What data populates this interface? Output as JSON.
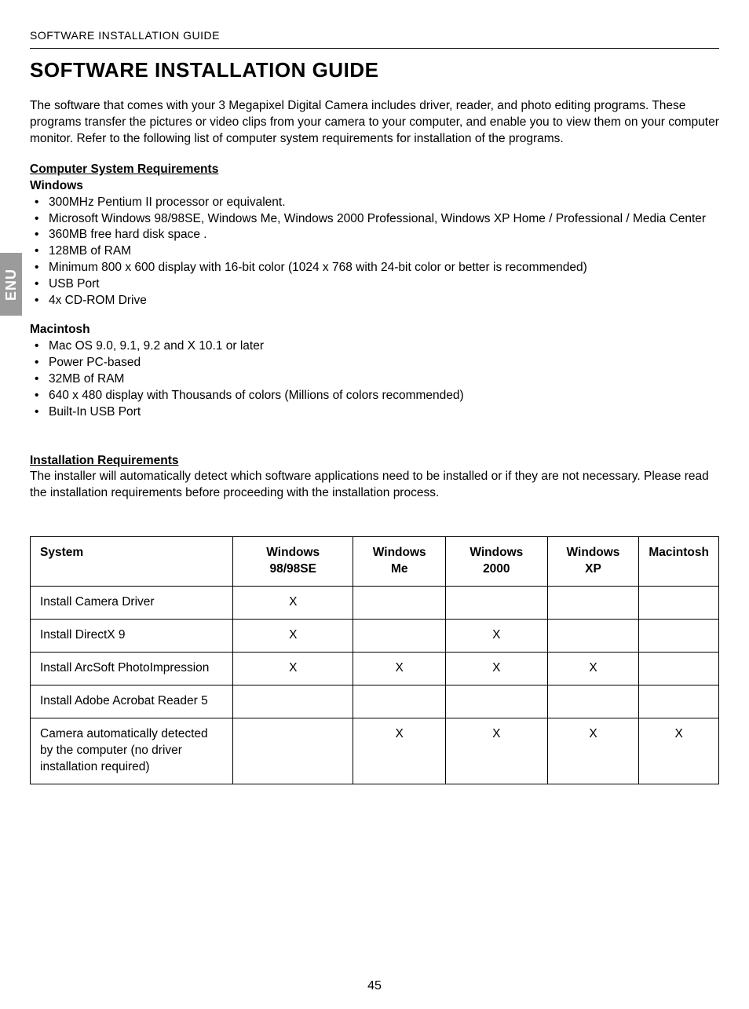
{
  "side_tab": "ENU",
  "running_header": "SOFTWARE INSTALLATION GUIDE",
  "title": "SOFTWARE INSTALLATION GUIDE",
  "intro": "The software that comes with your 3 Megapixel Digital Camera includes driver, reader, and photo editing programs. These programs transfer the pictures or video clips from your camera to your computer, and enable you to view them on your computer monitor. Refer to the following list of computer system requirements for installation of the programs.",
  "sys_req_heading": "Computer System Requirements",
  "windows_heading": "Windows",
  "windows_items": [
    "300MHz Pentium II processor or equivalent.",
    "Microsoft Windows 98/98SE, Windows Me, Windows 2000 Professional, Windows XP Home / Professional / Media Center",
    "360MB free hard disk space .",
    "128MB of RAM",
    "Minimum 800 x 600 display with 16-bit color (1024 x 768 with 24-bit color or better is recommended)",
    "USB Port",
    "4x CD-ROM Drive"
  ],
  "mac_heading": "Macintosh",
  "mac_items": [
    "Mac OS 9.0, 9.1, 9.2 and X 10.1 or later",
    "Power PC-based",
    "32MB of RAM",
    "640 x 480 display with Thousands of colors (Millions of colors recommended)",
    "Built-In USB Port"
  ],
  "install_req_heading": "Installation Requirements",
  "install_req_body": "The installer will automatically detect which software applications need to be installed or if they are not necessary.  Please read the installation requirements before proceeding with the installation process.",
  "table": {
    "columns": [
      "System",
      "Windows 98/98SE",
      "Windows Me",
      "Windows 2000",
      "Windows XP",
      "Macintosh"
    ],
    "rows": [
      {
        "label": "Install Camera Driver",
        "cells": [
          "X",
          "",
          "",
          "",
          ""
        ]
      },
      {
        "label": "Install DirectX 9",
        "cells": [
          "X",
          "",
          "X",
          "",
          ""
        ]
      },
      {
        "label": "Install ArcSoft PhotoImpression",
        "cells": [
          "X",
          "X",
          "X",
          "X",
          ""
        ]
      },
      {
        "label": "Install Adobe Acrobat Reader 5",
        "cells": [
          "",
          "",
          "",
          "",
          ""
        ]
      },
      {
        "label": "Camera automatically detected by the computer (no driver installation required)",
        "cells": [
          "",
          "X",
          "X",
          "X",
          "X"
        ]
      }
    ]
  },
  "page_number": "45"
}
